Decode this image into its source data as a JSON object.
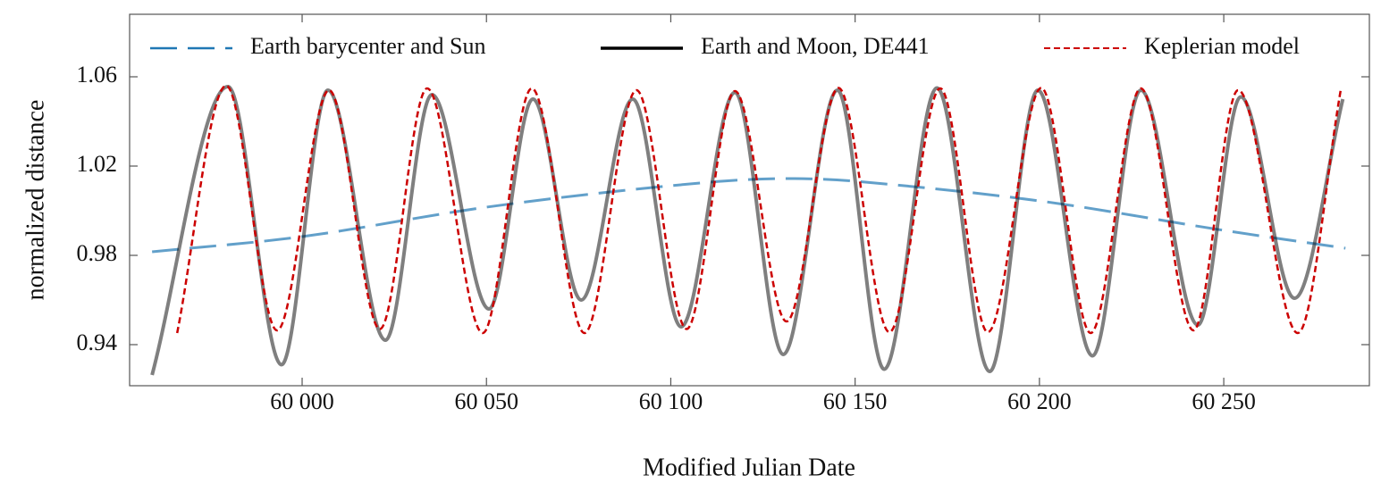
{
  "chart_data": {
    "type": "line",
    "xlabel": "Modified Julian Date",
    "ylabel": "normalized distance",
    "xlim": [
      59953.2,
      60289.5
    ],
    "ylim": [
      0.9216,
      1.088
    ],
    "xticks": [
      {
        "value": 60000,
        "label": "60 000"
      },
      {
        "value": 60050,
        "label": "60 050"
      },
      {
        "value": 60100,
        "label": "60 100"
      },
      {
        "value": 60150,
        "label": "60 150"
      },
      {
        "value": 60200,
        "label": "60 200"
      },
      {
        "value": 60250,
        "label": "60 250"
      }
    ],
    "yticks": [
      0.94,
      0.98,
      1.02,
      1.06
    ],
    "legend": "top",
    "series": [
      {
        "name": "Earth barycenter and Sun",
        "color": "#1f77b4",
        "style": "dashed",
        "x": [
          59959.3,
          60000,
          60050,
          60100,
          60131,
          60150,
          60200,
          60250,
          60283
        ],
        "values": [
          0.9816,
          0.9884,
          1.0016,
          1.0112,
          1.0144,
          1.0132,
          1.0044,
          0.9912,
          0.9832
        ]
      },
      {
        "name": "Earth and Moon, DE441",
        "color": "#000000",
        "style": "solid",
        "x": [
          59959.3,
          59979.9,
          59994.4,
          60007.0,
          60022.6,
          60035.2,
          60050.7,
          60062.6,
          60075.7,
          60089.7,
          60102.8,
          60117.4,
          60130.5,
          60145.2,
          60157.9,
          60172.2,
          60186.5,
          60199.6,
          60214.4,
          60227.5,
          60243.0,
          60254.6,
          60269.2,
          60282.3
        ],
        "values": [
          0.9264,
          1.0556,
          0.931,
          1.054,
          0.942,
          1.052,
          0.956,
          1.05,
          0.96,
          1.05,
          0.948,
          1.053,
          0.9356,
          1.054,
          0.929,
          1.055,
          0.928,
          1.054,
          0.935,
          1.054,
          0.9488,
          1.051,
          0.9608,
          1.05
        ]
      },
      {
        "name": "Keplerian model",
        "color": "#cc0000",
        "style": "dotted",
        "x": [
          59966.1,
          59979.4,
          59993.2,
          60007.3,
          60021.1,
          60033.9,
          60049.0,
          60062.3,
          60076.6,
          60090.7,
          60104.3,
          60117.4,
          60131.4,
          60145.5,
          60159.3,
          60173.1,
          60186.0,
          60200.5,
          60213.9,
          60227.5,
          60241.8,
          60253.9,
          60270.1,
          60281.8
        ],
        "values": [
          0.9452,
          1.056,
          0.9464,
          1.054,
          0.947,
          1.0548,
          0.9452,
          1.0548,
          0.9452,
          1.054,
          0.947,
          1.0536,
          0.9504,
          1.055,
          0.9456,
          1.0548,
          0.9456,
          1.055,
          0.9452,
          1.0548,
          0.9464,
          1.054,
          0.9452,
          1.0548
        ]
      }
    ]
  }
}
